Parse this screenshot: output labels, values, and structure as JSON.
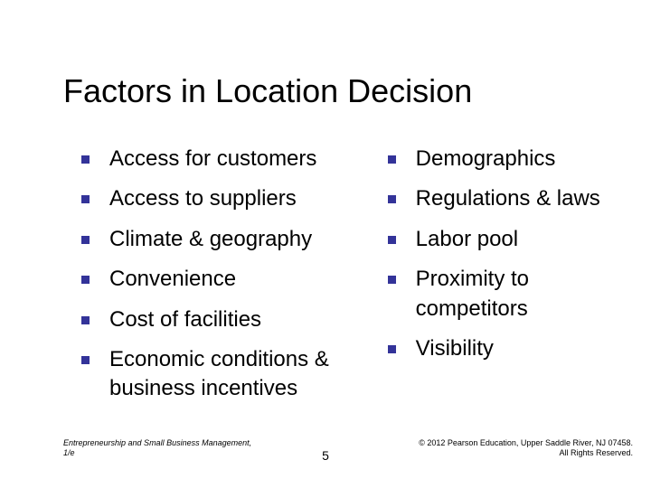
{
  "slide": {
    "title": "Factors in Location Decision",
    "bullet_color": "#333399",
    "title_fontsize": 36,
    "body_fontsize": 24,
    "background_color": "#ffffff",
    "text_color": "#000000",
    "left_column": [
      "Access for customers",
      "Access to suppliers",
      "Climate & geography",
      "Convenience",
      "Cost of facilities",
      "Economic conditions & business incentives"
    ],
    "right_column": [
      "Demographics",
      "Regulations & laws",
      "Labor pool",
      "Proximity to competitors",
      "Visibility"
    ]
  },
  "footer": {
    "source_line1": "Entrepreneurship and Small Business Management,",
    "source_line2": "1/e",
    "page_number": "5",
    "copyright_line1": "© 2012 Pearson Education, Upper Saddle River, NJ 07458.",
    "copyright_line2": "All Rights Reserved."
  }
}
